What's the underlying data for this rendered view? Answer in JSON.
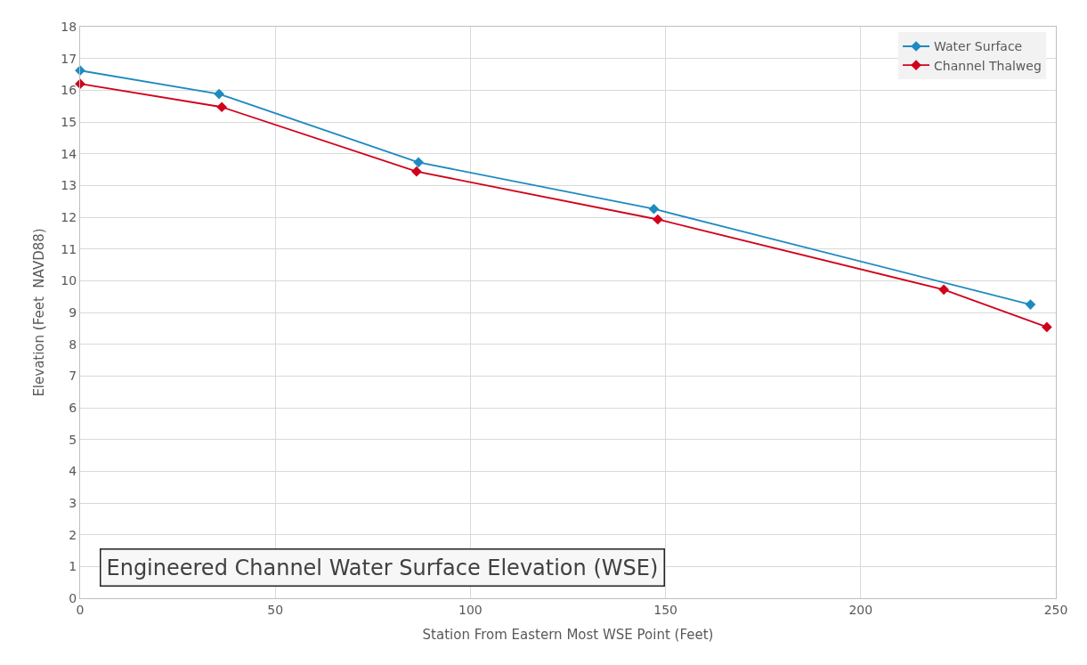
{
  "chart_data": {
    "type": "line",
    "title": "Engineered Channel Water Surface Elevation (WSE)",
    "xlabel": "Station From Eastern Most WSE Point (Feet)",
    "ylabel": "Elevation (Feet  NAVD88)",
    "series": [
      {
        "name": "Water Surface",
        "color": "#1f8ac0",
        "x": [
          0,
          35.6,
          86.7,
          147,
          243.5
        ],
        "values": [
          16.62,
          15.88,
          13.73,
          12.26,
          9.25
        ]
      },
      {
        "name": "Channel Thalweg",
        "color": "#d0021b",
        "x": [
          0,
          36.3,
          86.2,
          148,
          221.3,
          247.7
        ],
        "values": [
          16.2,
          15.47,
          13.44,
          11.93,
          9.72,
          8.54
        ]
      }
    ],
    "xlim": [
      0,
      250
    ],
    "xticks": [
      0,
      50,
      100,
      150,
      200,
      250
    ],
    "ylim": [
      0,
      18
    ],
    "yticks": [
      0,
      1,
      2,
      3,
      4,
      5,
      6,
      7,
      8,
      9,
      10,
      11,
      12,
      13,
      14,
      15,
      16,
      17,
      18
    ],
    "grid": true,
    "legend": "top right",
    "marker": "diamond",
    "line_style": "solid"
  }
}
